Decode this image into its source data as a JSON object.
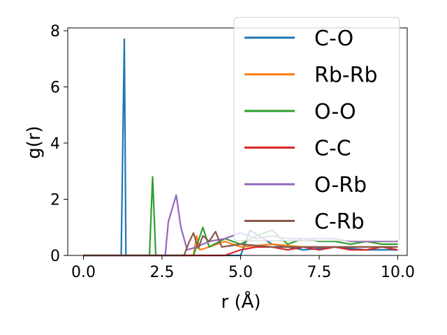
{
  "chart_data": {
    "type": "line",
    "title": "",
    "xlabel": "r (Å)",
    "ylabel": "g(r)",
    "xlim": [
      -0.5,
      10.3
    ],
    "ylim": [
      0,
      8.1
    ],
    "xticks": [
      0.0,
      2.5,
      5.0,
      7.5,
      10.0
    ],
    "xtick_labels": [
      "0.0",
      "2.5",
      "5.0",
      "7.5",
      "10.0"
    ],
    "yticks": [
      0,
      2,
      4,
      6,
      8
    ],
    "ytick_labels": [
      "0",
      "2",
      "4",
      "6",
      "8"
    ],
    "grid": false,
    "legend_position": "top-right",
    "series": [
      {
        "name": "C-O",
        "color": "#1f77b4",
        "x": [
          0.0,
          1.2,
          1.3,
          1.35,
          1.45,
          5.0,
          5.3,
          6.0,
          6.5,
          7.0,
          8.0,
          9.0,
          10.0
        ],
        "y": [
          0,
          0,
          7.7,
          0,
          0,
          0,
          0.9,
          0.4,
          0.3,
          0.2,
          0.3,
          0.2,
          0.2
        ]
      },
      {
        "name": "Rb-Rb",
        "color": "#ff7f0e",
        "x": [
          0.0,
          3.5,
          3.6,
          3.7,
          4.0,
          4.5,
          5.0,
          6.0,
          7.0,
          8.0,
          9.0,
          10.0
        ],
        "y": [
          0,
          0,
          0.7,
          0.2,
          0.3,
          0.5,
          0.3,
          0.4,
          0.3,
          0.3,
          0.3,
          0.3
        ]
      },
      {
        "name": "O-O",
        "color": "#2ca02c",
        "x": [
          0.0,
          2.1,
          2.2,
          2.3,
          3.5,
          3.8,
          4.0,
          4.5,
          5.0,
          5.5,
          6.0,
          6.5,
          7.0,
          7.5,
          8.0,
          8.5,
          9.0,
          9.5,
          10.0
        ],
        "y": [
          0,
          0,
          2.8,
          0,
          0,
          1.0,
          0.3,
          0.6,
          0.4,
          0.7,
          0.9,
          0.4,
          0.6,
          0.5,
          0.5,
          0.4,
          0.5,
          0.4,
          0.4
        ]
      },
      {
        "name": "C-C",
        "color": "#d62728",
        "x": [
          0.0,
          4.5,
          5.0,
          5.5,
          6.0,
          6.5,
          7.0,
          7.5,
          8.0,
          8.5,
          9.0,
          9.5,
          10.0
        ],
        "y": [
          0,
          0,
          0.2,
          0.3,
          0.3,
          0.2,
          0.3,
          0.2,
          0.3,
          0.2,
          0.2,
          0.3,
          0.2
        ]
      },
      {
        "name": "O-Rb",
        "color": "#9467bd",
        "x": [
          0.0,
          2.6,
          2.7,
          2.95,
          3.1,
          3.3,
          3.6,
          4.0,
          4.5,
          5.0,
          5.5,
          6.0,
          6.5,
          7.0,
          7.5,
          8.0,
          8.5,
          9.0,
          9.5,
          10.0
        ],
        "y": [
          0,
          0,
          1.2,
          2.15,
          1.0,
          0.2,
          0.3,
          0.5,
          0.6,
          0.8,
          0.6,
          0.7,
          0.6,
          0.6,
          0.6,
          0.6,
          0.5,
          0.5,
          0.5,
          0.5
        ]
      },
      {
        "name": "C-Rb",
        "color": "#8c564b",
        "x": [
          0.0,
          3.2,
          3.35,
          3.5,
          3.65,
          3.8,
          4.0,
          4.2,
          4.4,
          5.0,
          6.0,
          7.0,
          8.0,
          9.0,
          10.0
        ],
        "y": [
          0,
          0,
          0.45,
          0.8,
          0.25,
          0.7,
          0.5,
          0.85,
          0.3,
          0.4,
          0.3,
          0.3,
          0.3,
          0.3,
          0.3
        ]
      }
    ]
  }
}
